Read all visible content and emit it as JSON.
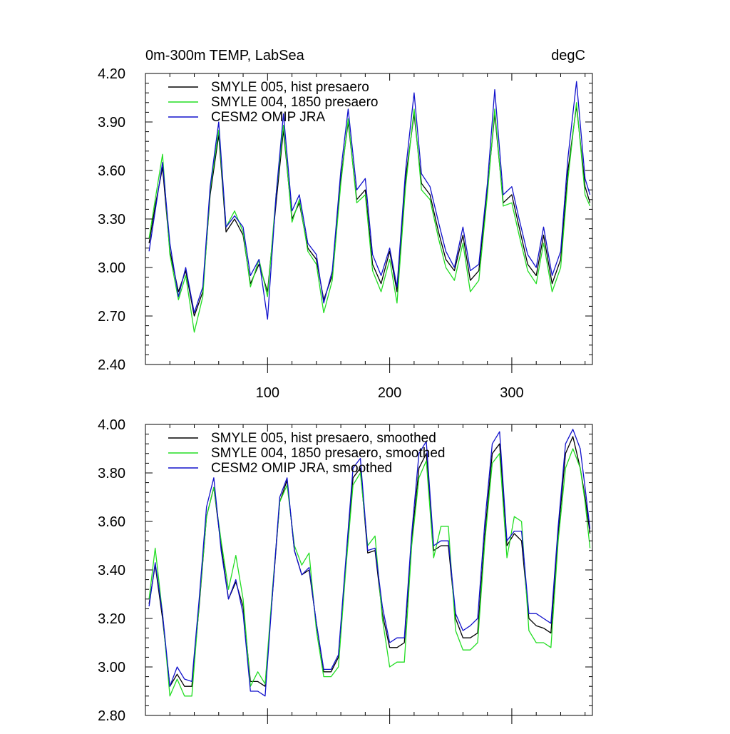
{
  "chart_data": [
    {
      "type": "line",
      "title": "0m-300m TEMP, LabSea",
      "units": "degC",
      "xlabel": "",
      "ylabel": "",
      "xlim": [
        0,
        366
      ],
      "ylim": [
        2.4,
        4.2
      ],
      "x_ticks": [
        100,
        200,
        300
      ],
      "x_tick_labels": [
        "100",
        "200",
        "300"
      ],
      "y_ticks": [
        2.4,
        2.7,
        3.0,
        3.3,
        3.6,
        3.9,
        4.2
      ],
      "y_tick_labels": [
        "2.40",
        "2.70",
        "3.00",
        "3.30",
        "3.60",
        "3.90",
        "4.20"
      ],
      "legend_position": "top-left",
      "grid": false,
      "x": [
        3,
        8,
        14,
        20,
        27,
        33,
        40,
        47,
        53,
        60,
        66,
        73,
        80,
        86,
        93,
        100,
        107,
        113,
        120,
        126,
        133,
        140,
        146,
        153,
        160,
        166,
        173,
        180,
        186,
        193,
        200,
        206,
        213,
        220,
        226,
        233,
        240,
        246,
        253,
        260,
        266,
        273,
        280,
        286,
        293,
        300,
        306,
        313,
        320,
        326,
        333,
        340,
        346,
        353,
        360,
        364
      ],
      "series": [
        {
          "name": "SMYLE 005, hist presaero",
          "color": "#000000",
          "values": [
            3.15,
            3.38,
            3.62,
            3.1,
            2.85,
            2.98,
            2.7,
            2.85,
            3.45,
            3.82,
            3.22,
            3.3,
            3.2,
            2.9,
            3.02,
            2.85,
            3.4,
            3.85,
            3.3,
            3.4,
            3.12,
            3.05,
            2.8,
            2.95,
            3.55,
            3.9,
            3.42,
            3.48,
            3.02,
            2.9,
            3.1,
            2.85,
            3.55,
            3.95,
            3.52,
            3.45,
            3.22,
            3.05,
            2.98,
            3.2,
            2.92,
            2.98,
            3.48,
            3.95,
            3.4,
            3.45,
            3.25,
            3.02,
            2.95,
            3.2,
            2.9,
            3.05,
            3.6,
            4.0,
            3.5,
            3.4
          ]
        },
        {
          "name": "SMYLE 004, 1850 presaero",
          "color": "#22dd22",
          "values": [
            3.18,
            3.42,
            3.7,
            3.08,
            2.8,
            2.95,
            2.6,
            2.82,
            3.48,
            3.85,
            3.25,
            3.35,
            3.22,
            2.88,
            3.05,
            2.82,
            3.45,
            3.88,
            3.28,
            3.42,
            3.1,
            3.02,
            2.72,
            2.92,
            3.52,
            3.92,
            3.4,
            3.45,
            2.98,
            2.85,
            3.05,
            2.78,
            3.5,
            3.98,
            3.48,
            3.42,
            3.18,
            3.0,
            2.92,
            3.15,
            2.85,
            2.92,
            3.45,
            3.98,
            3.38,
            3.4,
            3.2,
            2.98,
            2.9,
            3.15,
            2.85,
            3.0,
            3.55,
            4.02,
            3.45,
            3.38
          ]
        },
        {
          "name": "CESM2 OMIP JRA",
          "color": "#1111cc",
          "values": [
            3.1,
            3.35,
            3.65,
            3.15,
            2.82,
            3.0,
            2.72,
            2.88,
            3.5,
            3.9,
            3.25,
            3.32,
            3.25,
            2.95,
            3.05,
            2.68,
            3.45,
            3.95,
            3.35,
            3.45,
            3.15,
            3.08,
            2.78,
            2.98,
            3.6,
            3.98,
            3.48,
            3.55,
            3.08,
            2.95,
            3.12,
            2.88,
            3.6,
            4.08,
            3.58,
            3.5,
            3.28,
            3.1,
            3.0,
            3.25,
            2.98,
            3.02,
            3.52,
            4.1,
            3.45,
            3.5,
            3.3,
            3.08,
            3.0,
            3.25,
            2.95,
            3.1,
            3.68,
            4.15,
            3.55,
            3.45
          ]
        }
      ]
    },
    {
      "type": "line",
      "title": "",
      "units": "",
      "xlabel": "",
      "ylabel": "",
      "xlim": [
        0,
        366
      ],
      "ylim": [
        2.8,
        4.0
      ],
      "x_ticks": [
        100,
        200,
        300
      ],
      "x_tick_labels": [],
      "y_ticks": [
        2.8,
        3.0,
        3.2,
        3.4,
        3.6,
        3.8,
        4.0
      ],
      "y_tick_labels": [
        "2.80",
        "3.00",
        "3.20",
        "3.40",
        "3.60",
        "3.80",
        "4.00"
      ],
      "legend_position": "top-left",
      "grid": false,
      "x": [
        3,
        8,
        14,
        20,
        26,
        32,
        38,
        44,
        50,
        56,
        62,
        68,
        74,
        80,
        86,
        92,
        98,
        104,
        110,
        116,
        122,
        128,
        134,
        140,
        146,
        152,
        158,
        164,
        170,
        176,
        182,
        188,
        194,
        200,
        206,
        212,
        218,
        224,
        230,
        236,
        242,
        248,
        254,
        260,
        266,
        272,
        278,
        284,
        290,
        296,
        302,
        308,
        314,
        320,
        326,
        332,
        338,
        344,
        350,
        356,
        360,
        364
      ],
      "series": [
        {
          "name": "SMYLE 005, hist presaero, smoothed",
          "color": "#000000",
          "values": [
            3.26,
            3.42,
            3.2,
            2.92,
            2.97,
            2.92,
            2.92,
            3.25,
            3.62,
            3.74,
            3.5,
            3.28,
            3.35,
            3.25,
            2.94,
            2.94,
            2.92,
            3.3,
            3.68,
            3.77,
            3.48,
            3.38,
            3.4,
            3.18,
            2.98,
            2.98,
            3.04,
            3.42,
            3.78,
            3.82,
            3.47,
            3.48,
            3.22,
            3.08,
            3.08,
            3.1,
            3.52,
            3.82,
            3.88,
            3.48,
            3.5,
            3.5,
            3.2,
            3.12,
            3.12,
            3.14,
            3.55,
            3.88,
            3.92,
            3.5,
            3.55,
            3.52,
            3.2,
            3.17,
            3.16,
            3.14,
            3.55,
            3.88,
            3.95,
            3.82,
            3.7,
            3.55
          ]
        },
        {
          "name": "SMYLE 004, 1850 presaero, smoothed",
          "color": "#22dd22",
          "values": [
            3.28,
            3.49,
            3.22,
            2.88,
            2.95,
            2.88,
            2.88,
            3.26,
            3.62,
            3.74,
            3.52,
            3.32,
            3.46,
            3.28,
            2.92,
            2.98,
            2.93,
            3.32,
            3.68,
            3.75,
            3.5,
            3.42,
            3.47,
            3.15,
            2.96,
            2.96,
            3.0,
            3.4,
            3.75,
            3.8,
            3.5,
            3.54,
            3.2,
            3.0,
            3.02,
            3.02,
            3.5,
            3.78,
            3.85,
            3.45,
            3.58,
            3.58,
            3.15,
            3.07,
            3.07,
            3.1,
            3.52,
            3.84,
            3.88,
            3.45,
            3.62,
            3.6,
            3.15,
            3.1,
            3.1,
            3.08,
            3.52,
            3.82,
            3.9,
            3.82,
            3.68,
            3.49
          ]
        },
        {
          "name": "CESM2 OMIP JRA, smoothed",
          "color": "#1111cc",
          "values": [
            3.25,
            3.43,
            3.22,
            2.92,
            3.0,
            2.95,
            2.94,
            3.28,
            3.66,
            3.78,
            3.48,
            3.28,
            3.36,
            3.22,
            2.9,
            2.9,
            2.88,
            3.3,
            3.7,
            3.78,
            3.48,
            3.38,
            3.41,
            3.18,
            2.99,
            2.99,
            3.05,
            3.44,
            3.82,
            3.86,
            3.48,
            3.49,
            3.25,
            3.1,
            3.12,
            3.12,
            3.55,
            3.88,
            3.93,
            3.5,
            3.52,
            3.52,
            3.22,
            3.15,
            3.17,
            3.2,
            3.6,
            3.92,
            3.97,
            3.52,
            3.56,
            3.56,
            3.22,
            3.22,
            3.2,
            3.18,
            3.58,
            3.92,
            3.98,
            3.9,
            3.74,
            3.57
          ]
        }
      ]
    }
  ]
}
